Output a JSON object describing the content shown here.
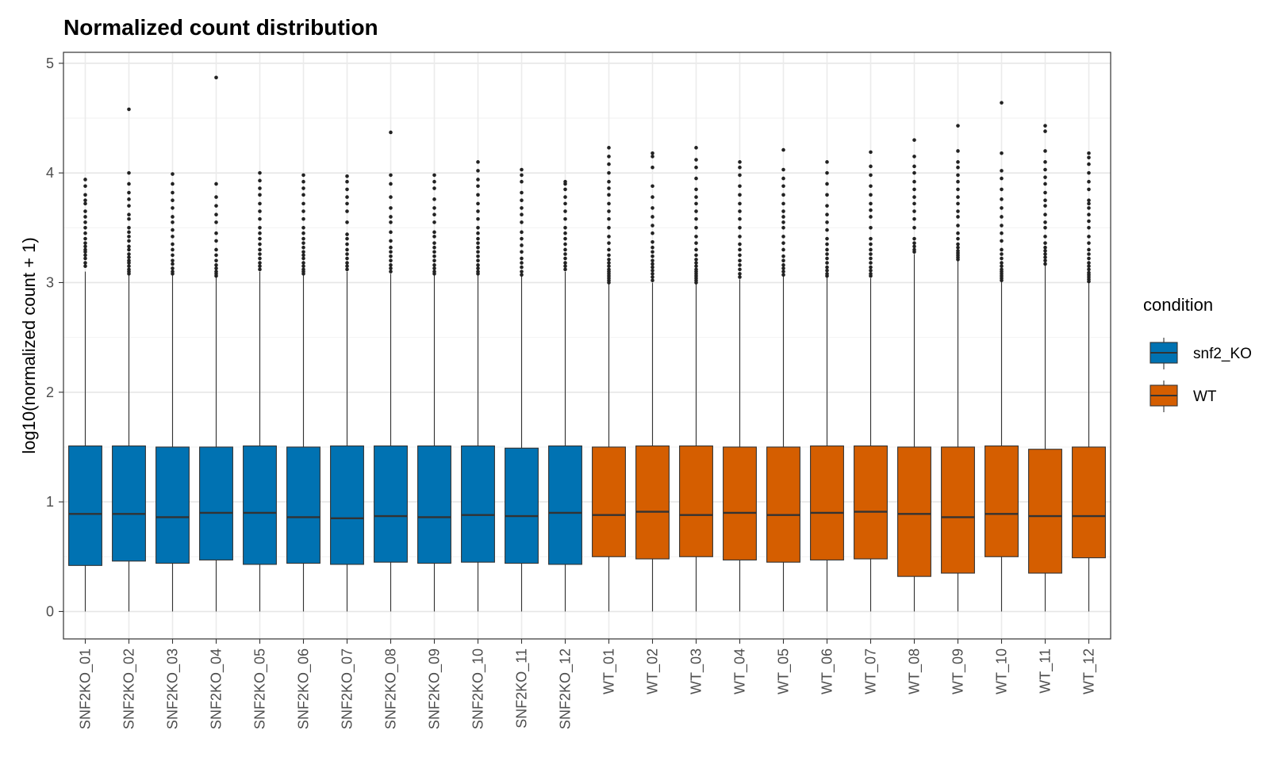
{
  "chart_data": {
    "type": "boxplot",
    "title": "Normalized count distribution",
    "xlabel": "",
    "ylabel": "log10(normalized count + 1)",
    "ylim": [
      -0.25,
      5.1
    ],
    "yticks": [
      0,
      1,
      2,
      3,
      4,
      5
    ],
    "grid": true,
    "legend": {
      "title": "condition",
      "position": "right"
    },
    "groups": [
      {
        "name": "snf2_KO",
        "color": "#0072B2"
      },
      {
        "name": "WT",
        "color": "#D55E00"
      }
    ],
    "categories": [
      "SNF2KO_01",
      "SNF2KO_02",
      "SNF2KO_03",
      "SNF2KO_04",
      "SNF2KO_05",
      "SNF2KO_06",
      "SNF2KO_07",
      "SNF2KO_08",
      "SNF2KO_09",
      "SNF2KO_10",
      "SNF2KO_11",
      "SNF2KO_12",
      "WT_01",
      "WT_02",
      "WT_03",
      "WT_04",
      "WT_05",
      "WT_06",
      "WT_07",
      "WT_08",
      "WT_09",
      "WT_10",
      "WT_11",
      "WT_12"
    ],
    "boxes": [
      {
        "name": "SNF2KO_01",
        "group": "snf2_KO",
        "min": 0,
        "q1": 0.42,
        "median": 0.89,
        "q3": 1.51,
        "max": 3.1,
        "outliers": [
          3.15,
          3.18,
          3.22,
          3.25,
          3.28,
          3.3,
          3.33,
          3.36,
          3.4,
          3.45,
          3.5,
          3.55,
          3.6,
          3.65,
          3.72,
          3.75,
          3.8,
          3.88,
          3.94
        ]
      },
      {
        "name": "SNF2KO_02",
        "group": "snf2_KO",
        "min": 0,
        "q1": 0.46,
        "median": 0.89,
        "q3": 1.51,
        "max": 3.07,
        "outliers": [
          3.08,
          3.1,
          3.12,
          3.15,
          3.18,
          3.2,
          3.23,
          3.26,
          3.3,
          3.33,
          3.38,
          3.42,
          3.46,
          3.5,
          3.58,
          3.62,
          3.7,
          3.76,
          3.82,
          3.9,
          4.0,
          4.58
        ]
      },
      {
        "name": "SNF2KO_03",
        "group": "snf2_KO",
        "min": 0,
        "q1": 0.44,
        "median": 0.86,
        "q3": 1.5,
        "max": 3.07,
        "outliers": [
          3.08,
          3.1,
          3.13,
          3.17,
          3.2,
          3.25,
          3.3,
          3.35,
          3.42,
          3.48,
          3.55,
          3.6,
          3.68,
          3.75,
          3.82,
          3.9,
          3.99
        ]
      },
      {
        "name": "SNF2KO_04",
        "group": "snf2_KO",
        "min": 0,
        "q1": 0.47,
        "median": 0.9,
        "q3": 1.5,
        "max": 3.05,
        "outliers": [
          3.06,
          3.08,
          3.1,
          3.13,
          3.16,
          3.2,
          3.25,
          3.3,
          3.38,
          3.45,
          3.55,
          3.62,
          3.7,
          3.78,
          3.9,
          4.87
        ]
      },
      {
        "name": "SNF2KO_05",
        "group": "snf2_KO",
        "min": 0,
        "q1": 0.43,
        "median": 0.9,
        "q3": 1.51,
        "max": 3.1,
        "outliers": [
          3.12,
          3.15,
          3.18,
          3.22,
          3.26,
          3.3,
          3.35,
          3.4,
          3.45,
          3.5,
          3.58,
          3.65,
          3.72,
          3.8,
          3.86,
          3.93,
          4.0
        ]
      },
      {
        "name": "SNF2KO_06",
        "group": "snf2_KO",
        "min": 0,
        "q1": 0.44,
        "median": 0.86,
        "q3": 1.5,
        "max": 3.07,
        "outliers": [
          3.08,
          3.1,
          3.12,
          3.15,
          3.18,
          3.22,
          3.25,
          3.28,
          3.32,
          3.36,
          3.4,
          3.45,
          3.5,
          3.58,
          3.65,
          3.72,
          3.8,
          3.86,
          3.92,
          3.98
        ]
      },
      {
        "name": "SNF2KO_07",
        "group": "snf2_KO",
        "min": 0,
        "q1": 0.43,
        "median": 0.85,
        "q3": 1.51,
        "max": 3.1,
        "outliers": [
          3.12,
          3.15,
          3.18,
          3.22,
          3.26,
          3.3,
          3.35,
          3.4,
          3.44,
          3.55,
          3.65,
          3.72,
          3.78,
          3.85,
          3.92,
          3.97
        ]
      },
      {
        "name": "SNF2KO_08",
        "group": "snf2_KO",
        "min": 0,
        "q1": 0.45,
        "median": 0.87,
        "q3": 1.51,
        "max": 3.08,
        "outliers": [
          3.1,
          3.13,
          3.16,
          3.2,
          3.24,
          3.28,
          3.32,
          3.38,
          3.46,
          3.55,
          3.6,
          3.68,
          3.78,
          3.9,
          3.98,
          4.37
        ]
      },
      {
        "name": "SNF2KO_09",
        "group": "snf2_KO",
        "min": 0,
        "q1": 0.44,
        "median": 0.86,
        "q3": 1.51,
        "max": 3.07,
        "outliers": [
          3.08,
          3.1,
          3.13,
          3.16,
          3.2,
          3.24,
          3.28,
          3.32,
          3.36,
          3.42,
          3.46,
          3.55,
          3.62,
          3.68,
          3.76,
          3.86,
          3.92,
          3.98
        ]
      },
      {
        "name": "SNF2KO_10",
        "group": "snf2_KO",
        "min": 0,
        "q1": 0.45,
        "median": 0.88,
        "q3": 1.51,
        "max": 3.07,
        "outliers": [
          3.08,
          3.1,
          3.13,
          3.16,
          3.2,
          3.24,
          3.28,
          3.32,
          3.36,
          3.4,
          3.45,
          3.5,
          3.58,
          3.65,
          3.72,
          3.8,
          3.88,
          3.94,
          4.02,
          4.1
        ]
      },
      {
        "name": "SNF2KO_11",
        "group": "snf2_KO",
        "min": 0,
        "q1": 0.44,
        "median": 0.87,
        "q3": 1.49,
        "max": 3.06,
        "outliers": [
          3.07,
          3.1,
          3.14,
          3.18,
          3.22,
          3.28,
          3.34,
          3.4,
          3.46,
          3.55,
          3.62,
          3.68,
          3.75,
          3.82,
          3.92,
          3.98,
          4.03
        ]
      },
      {
        "name": "SNF2KO_12",
        "group": "snf2_KO",
        "min": 0,
        "q1": 0.43,
        "median": 0.9,
        "q3": 1.51,
        "max": 3.1,
        "outliers": [
          3.12,
          3.15,
          3.18,
          3.22,
          3.26,
          3.3,
          3.35,
          3.4,
          3.45,
          3.5,
          3.58,
          3.65,
          3.72,
          3.78,
          3.85,
          3.9,
          3.92
        ]
      },
      {
        "name": "WT_01",
        "group": "WT",
        "min": 0,
        "q1": 0.5,
        "median": 0.88,
        "q3": 1.5,
        "max": 2.99,
        "outliers": [
          3.0,
          3.02,
          3.04,
          3.06,
          3.08,
          3.1,
          3.12,
          3.15,
          3.18,
          3.21,
          3.25,
          3.3,
          3.36,
          3.42,
          3.5,
          3.58,
          3.65,
          3.72,
          3.8,
          3.86,
          3.92,
          4.0,
          4.08,
          4.15,
          4.23
        ]
      },
      {
        "name": "WT_02",
        "group": "WT",
        "min": 0,
        "q1": 0.48,
        "median": 0.91,
        "q3": 1.51,
        "max": 3.0,
        "outliers": [
          3.02,
          3.05,
          3.08,
          3.11,
          3.14,
          3.17,
          3.2,
          3.24,
          3.28,
          3.32,
          3.37,
          3.45,
          3.52,
          3.6,
          3.68,
          3.78,
          3.88,
          4.05,
          4.15,
          4.18
        ]
      },
      {
        "name": "WT_03",
        "group": "WT",
        "min": 0,
        "q1": 0.5,
        "median": 0.88,
        "q3": 1.51,
        "max": 2.99,
        "outliers": [
          3.0,
          3.02,
          3.04,
          3.06,
          3.08,
          3.1,
          3.12,
          3.15,
          3.18,
          3.21,
          3.25,
          3.3,
          3.36,
          3.42,
          3.5,
          3.58,
          3.65,
          3.72,
          3.78,
          3.85,
          3.95,
          4.05,
          4.12,
          4.23
        ]
      },
      {
        "name": "WT_04",
        "group": "WT",
        "min": 0,
        "q1": 0.47,
        "median": 0.9,
        "q3": 1.5,
        "max": 3.03,
        "outliers": [
          3.05,
          3.08,
          3.12,
          3.16,
          3.2,
          3.25,
          3.3,
          3.35,
          3.42,
          3.5,
          3.58,
          3.65,
          3.72,
          3.8,
          3.88,
          3.98,
          4.05,
          4.1
        ]
      },
      {
        "name": "WT_05",
        "group": "WT",
        "min": 0,
        "q1": 0.45,
        "median": 0.88,
        "q3": 1.5,
        "max": 3.06,
        "outliers": [
          3.07,
          3.1,
          3.13,
          3.16,
          3.2,
          3.24,
          3.3,
          3.36,
          3.42,
          3.5,
          3.55,
          3.6,
          3.65,
          3.72,
          3.8,
          3.88,
          3.95,
          4.03,
          4.21
        ]
      },
      {
        "name": "WT_06",
        "group": "WT",
        "min": 0,
        "q1": 0.47,
        "median": 0.9,
        "q3": 1.51,
        "max": 3.05,
        "outliers": [
          3.06,
          3.08,
          3.11,
          3.14,
          3.18,
          3.22,
          3.26,
          3.3,
          3.35,
          3.4,
          3.48,
          3.55,
          3.62,
          3.7,
          3.8,
          3.9,
          4.0,
          4.1
        ]
      },
      {
        "name": "WT_07",
        "group": "WT",
        "min": 0,
        "q1": 0.48,
        "median": 0.91,
        "q3": 1.51,
        "max": 3.04,
        "outliers": [
          3.06,
          3.08,
          3.11,
          3.14,
          3.18,
          3.22,
          3.26,
          3.3,
          3.35,
          3.4,
          3.5,
          3.6,
          3.66,
          3.72,
          3.8,
          3.88,
          3.98,
          4.06,
          4.19
        ]
      },
      {
        "name": "WT_08",
        "group": "WT",
        "min": 0,
        "q1": 0.32,
        "median": 0.89,
        "q3": 1.5,
        "max": 3.26,
        "outliers": [
          3.28,
          3.3,
          3.33,
          3.36,
          3.4,
          3.5,
          3.58,
          3.65,
          3.72,
          3.78,
          3.85,
          3.92,
          4.0,
          4.06,
          4.15,
          4.3
        ]
      },
      {
        "name": "WT_09",
        "group": "WT",
        "min": 0,
        "q1": 0.35,
        "median": 0.86,
        "q3": 1.5,
        "max": 3.2,
        "outliers": [
          3.21,
          3.23,
          3.25,
          3.27,
          3.29,
          3.32,
          3.35,
          3.4,
          3.45,
          3.52,
          3.6,
          3.65,
          3.72,
          3.78,
          3.85,
          3.92,
          3.98,
          4.05,
          4.1,
          4.2,
          4.43
        ]
      },
      {
        "name": "WT_10",
        "group": "WT",
        "min": 0,
        "q1": 0.5,
        "median": 0.89,
        "q3": 1.51,
        "max": 3.01,
        "outliers": [
          3.02,
          3.04,
          3.06,
          3.08,
          3.1,
          3.12,
          3.15,
          3.18,
          3.22,
          3.26,
          3.3,
          3.38,
          3.45,
          3.52,
          3.6,
          3.68,
          3.76,
          3.85,
          3.95,
          4.02,
          4.18,
          4.64
        ]
      },
      {
        "name": "WT_11",
        "group": "WT",
        "min": 0,
        "q1": 0.35,
        "median": 0.87,
        "q3": 1.48,
        "max": 3.16,
        "outliers": [
          3.17,
          3.2,
          3.23,
          3.26,
          3.29,
          3.32,
          3.36,
          3.42,
          3.5,
          3.55,
          3.62,
          3.7,
          3.75,
          3.82,
          3.9,
          3.96,
          4.03,
          4.1,
          4.2,
          4.38,
          4.43
        ]
      },
      {
        "name": "WT_12",
        "group": "WT",
        "min": 0,
        "q1": 0.49,
        "median": 0.87,
        "q3": 1.5,
        "max": 3.0,
        "outliers": [
          3.01,
          3.03,
          3.05,
          3.07,
          3.09,
          3.12,
          3.15,
          3.18,
          3.22,
          3.26,
          3.3,
          3.36,
          3.42,
          3.5,
          3.56,
          3.62,
          3.68,
          3.72,
          3.75,
          3.85,
          3.92,
          4.0,
          4.08,
          4.14,
          4.18
        ]
      }
    ]
  }
}
